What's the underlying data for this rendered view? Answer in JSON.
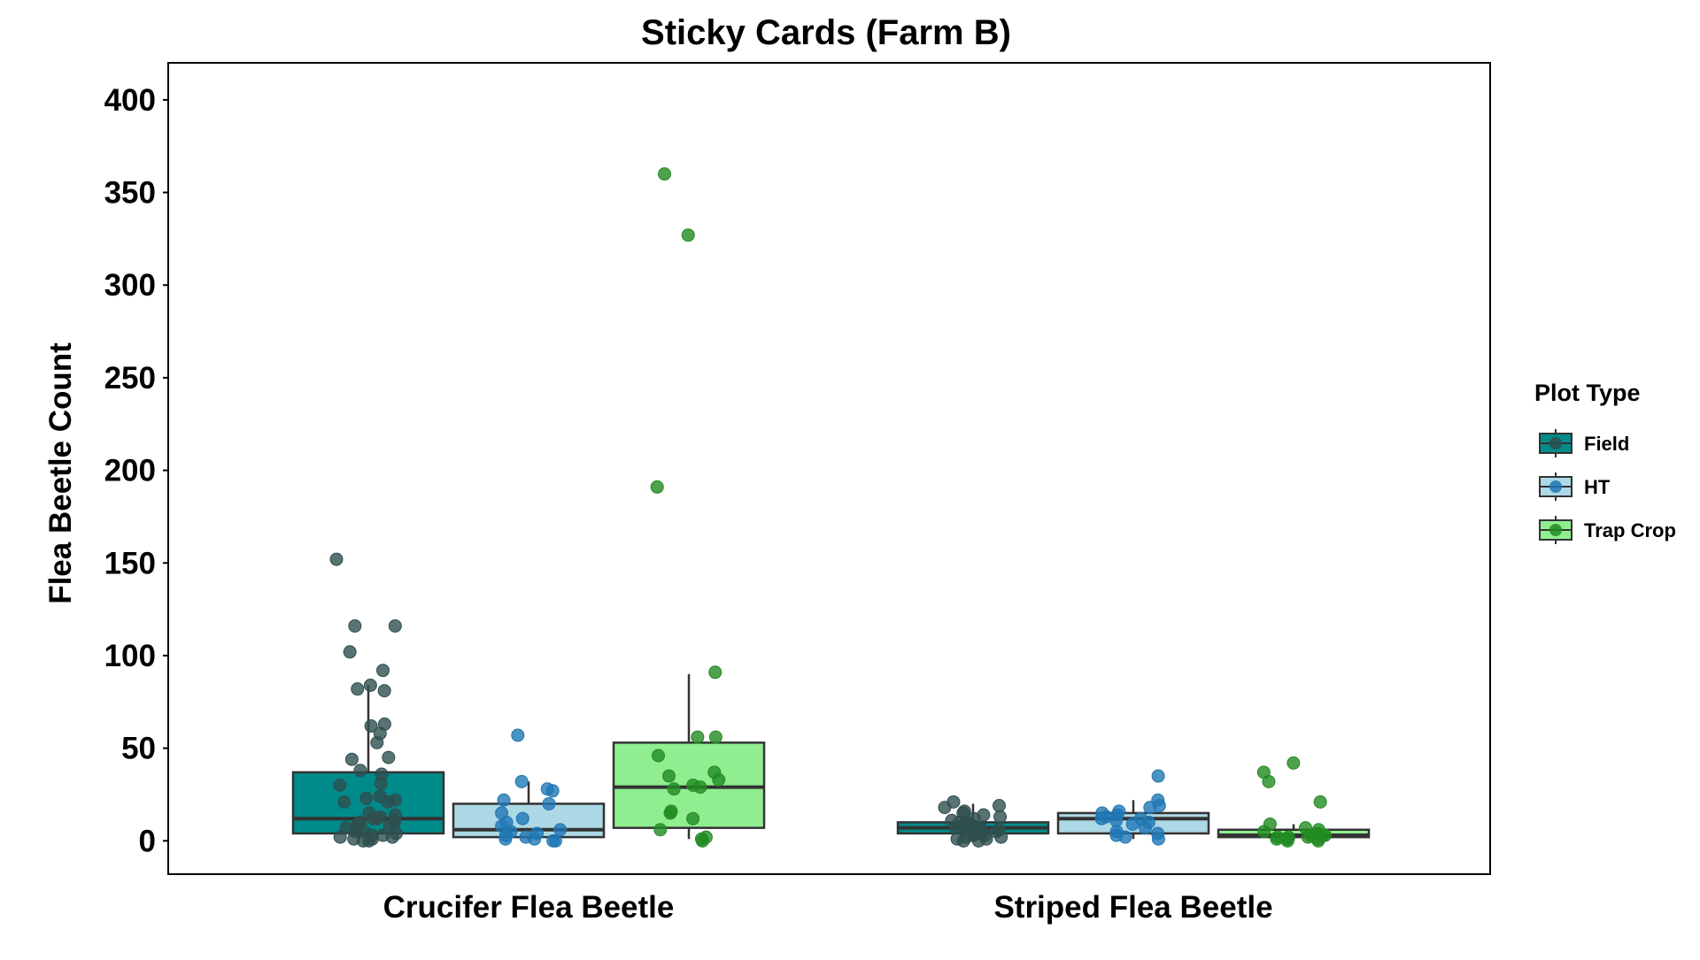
{
  "chart_data": {
    "type": "box",
    "title": "Sticky Cards (Farm B)",
    "xlabel": "",
    "ylabel": "Flea Beetle Count",
    "ylim": [
      -18,
      420
    ],
    "yticks": [
      0,
      50,
      100,
      150,
      200,
      250,
      300,
      350,
      400
    ],
    "categories": [
      "Crucifer Flea Beetle",
      "Striped Flea Beetle"
    ],
    "legend": {
      "title": "Plot Type",
      "position": "right"
    },
    "series": [
      {
        "name": "Field",
        "box_color": "#008b8b",
        "point_color": "#2f4f4f",
        "boxes": [
          {
            "q1": 4,
            "median": 12,
            "q3": 37,
            "whisker_low": 0,
            "whisker_high": 84
          },
          {
            "q1": 4,
            "median": 7,
            "q3": 10,
            "whisker_low": 0,
            "whisker_high": 20
          }
        ],
        "points": [
          [
            152,
            116,
            116,
            102,
            92,
            84,
            82,
            81,
            63,
            62,
            58,
            53,
            45,
            44,
            38,
            36,
            31,
            30,
            24,
            23,
            22,
            21,
            21,
            15,
            14,
            13,
            12,
            12,
            11,
            10,
            10,
            9,
            8,
            8,
            7,
            6,
            5,
            5,
            4,
            3,
            3,
            2,
            2,
            1,
            1,
            0,
            0
          ],
          [
            21,
            19,
            18,
            16,
            15,
            14,
            13,
            12,
            11,
            10,
            10,
            9,
            9,
            8,
            8,
            7,
            7,
            6,
            6,
            5,
            5,
            4,
            4,
            3,
            3,
            2,
            2,
            1,
            1,
            0,
            0
          ]
        ]
      },
      {
        "name": "HT",
        "box_color": "#add8e6",
        "point_color": "#1f77b4",
        "boxes": [
          {
            "q1": 2,
            "median": 6,
            "q3": 20,
            "whisker_low": 0,
            "whisker_high": 32
          },
          {
            "q1": 4,
            "median": 12,
            "q3": 15,
            "whisker_low": 1,
            "whisker_high": 22
          }
        ],
        "points": [
          [
            57,
            32,
            28,
            27,
            22,
            20,
            15,
            12,
            10,
            8,
            6,
            5,
            4,
            3,
            2,
            1,
            1,
            0,
            0
          ],
          [
            35,
            22,
            19,
            18,
            16,
            15,
            14,
            13,
            12,
            12,
            11,
            10,
            9,
            7,
            5,
            4,
            3,
            2,
            1
          ]
        ]
      },
      {
        "name": "Trap Crop",
        "box_color": "#90ee90",
        "point_color": "#228b22",
        "boxes": [
          {
            "q1": 7,
            "median": 29,
            "q3": 53,
            "whisker_low": 1,
            "whisker_high": 90
          },
          {
            "q1": 2,
            "median": 3,
            "q3": 6,
            "whisker_low": 0,
            "whisker_high": 9
          }
        ],
        "points": [
          [
            360,
            327,
            191,
            91,
            56,
            56,
            46,
            37,
            35,
            33,
            30,
            29,
            28,
            16,
            15,
            12,
            6,
            2,
            1,
            0
          ],
          [
            42,
            37,
            32,
            21,
            9,
            7,
            6,
            5,
            4,
            4,
            3,
            3,
            3,
            2,
            2,
            2,
            1,
            1,
            1,
            0,
            0
          ]
        ]
      }
    ]
  }
}
